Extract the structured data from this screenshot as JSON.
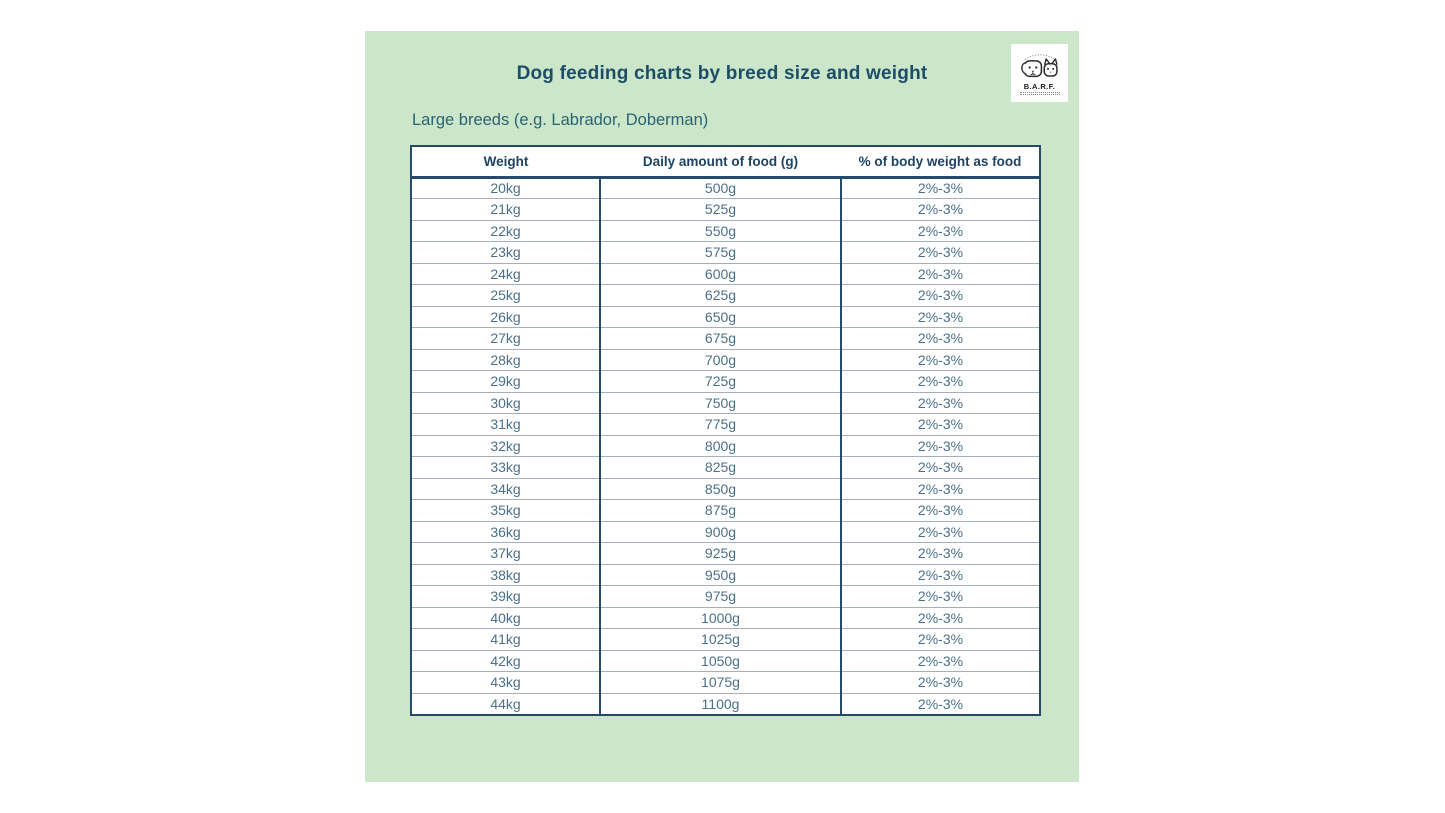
{
  "chart_data": {
    "type": "table",
    "title": "Dog feeding charts by breed size and weight",
    "subtitle": "Large breeds (e.g. Labrador, Doberman)",
    "columns": [
      "Weight",
      "Daily amount of food (g)",
      "% of body weight as food"
    ],
    "rows": [
      [
        "20kg",
        "500g",
        "2%-3%"
      ],
      [
        "21kg",
        "525g",
        "2%-3%"
      ],
      [
        "22kg",
        "550g",
        "2%-3%"
      ],
      [
        "23kg",
        "575g",
        "2%-3%"
      ],
      [
        "24kg",
        "600g",
        "2%-3%"
      ],
      [
        "25kg",
        "625g",
        "2%-3%"
      ],
      [
        "26kg",
        "650g",
        "2%-3%"
      ],
      [
        "27kg",
        "675g",
        "2%-3%"
      ],
      [
        "28kg",
        "700g",
        "2%-3%"
      ],
      [
        "29kg",
        "725g",
        "2%-3%"
      ],
      [
        "30kg",
        "750g",
        "2%-3%"
      ],
      [
        "31kg",
        "775g",
        "2%-3%"
      ],
      [
        "32kg",
        "800g",
        "2%-3%"
      ],
      [
        "33kg",
        "825g",
        "2%-3%"
      ],
      [
        "34kg",
        "850g",
        "2%-3%"
      ],
      [
        "35kg",
        "875g",
        "2%-3%"
      ],
      [
        "36kg",
        "900g",
        "2%-3%"
      ],
      [
        "37kg",
        "925g",
        "2%-3%"
      ],
      [
        "38kg",
        "950g",
        "2%-3%"
      ],
      [
        "39kg",
        "975g",
        "2%-3%"
      ],
      [
        "40kg",
        "1000g",
        "2%-3%"
      ],
      [
        "41kg",
        "1025g",
        "2%-3%"
      ],
      [
        "42kg",
        "1050g",
        "2%-3%"
      ],
      [
        "43kg",
        "1075g",
        "2%-3%"
      ],
      [
        "44kg",
        "1100g",
        "2%-3%"
      ]
    ],
    "layout_hints": {
      "grid": "on",
      "cell_alignment": "center",
      "header_background": "#ffffff",
      "body_background": "#ffffff"
    }
  },
  "logo": {
    "brand": "B.A.R.F.",
    "icon": "dog-and-cat-faces"
  },
  "colors": {
    "panel_bg": "#cbe6c8",
    "title_text": "#1d4e68",
    "subtitle_text": "#2a6374",
    "table_border": "#27496c",
    "header_text": "#1d4365",
    "cell_text": "#4b7089",
    "row_divider": "#a4afba",
    "logo_card_bg": "#ffffff"
  }
}
